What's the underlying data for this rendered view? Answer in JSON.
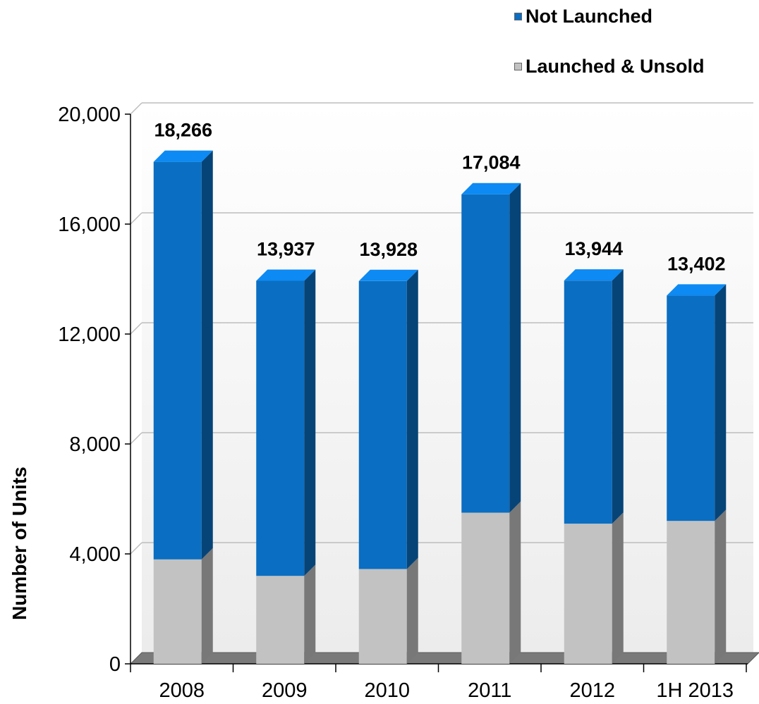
{
  "chart_data": {
    "type": "bar",
    "stacked": true,
    "categories": [
      "2008",
      "2009",
      "2010",
      "2011",
      "2012",
      "1H 2013"
    ],
    "series": [
      {
        "name": "Launched & Unsold",
        "values": [
          3800,
          3200,
          3450,
          5500,
          5100,
          5200
        ],
        "color": "#c2c2c2"
      },
      {
        "name": "Not Launched",
        "values": [
          14466,
          10737,
          10478,
          11584,
          8844,
          8202
        ],
        "color": "#0a6ec2"
      }
    ],
    "totals": [
      "18,266",
      "13,937",
      "13,928",
      "17,084",
      "13,944",
      "13,402"
    ],
    "ylabel": "Number of Units",
    "ylim": [
      0,
      20000
    ],
    "yticks": [
      "0",
      "4,000",
      "8,000",
      "12,000",
      "16,000",
      "20,000"
    ],
    "grid": true,
    "legend_position": "top-right"
  }
}
